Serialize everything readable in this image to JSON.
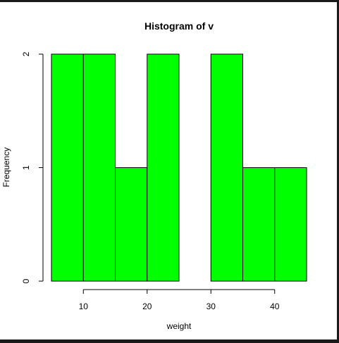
{
  "chart_data": {
    "type": "bar",
    "title": "Histogram of v",
    "xlabel": "weight",
    "ylabel": "Frequency",
    "bins": [
      {
        "from": 5,
        "to": 10,
        "count": 2
      },
      {
        "from": 10,
        "to": 15,
        "count": 2
      },
      {
        "from": 15,
        "to": 20,
        "count": 1
      },
      {
        "from": 20,
        "to": 25,
        "count": 2
      },
      {
        "from": 25,
        "to": 30,
        "count": 0
      },
      {
        "from": 30,
        "to": 35,
        "count": 2
      },
      {
        "from": 35,
        "to": 40,
        "count": 1
      },
      {
        "from": 40,
        "to": 45,
        "count": 1
      }
    ],
    "xlim": [
      5,
      45
    ],
    "ylim": [
      0,
      2
    ],
    "x_ticks": [
      10,
      20,
      30,
      40
    ],
    "y_ticks": [
      0,
      1,
      2
    ],
    "bar_color": "#00ff00",
    "bar_edge_color": "#000000",
    "grid": false,
    "legend": "none"
  }
}
